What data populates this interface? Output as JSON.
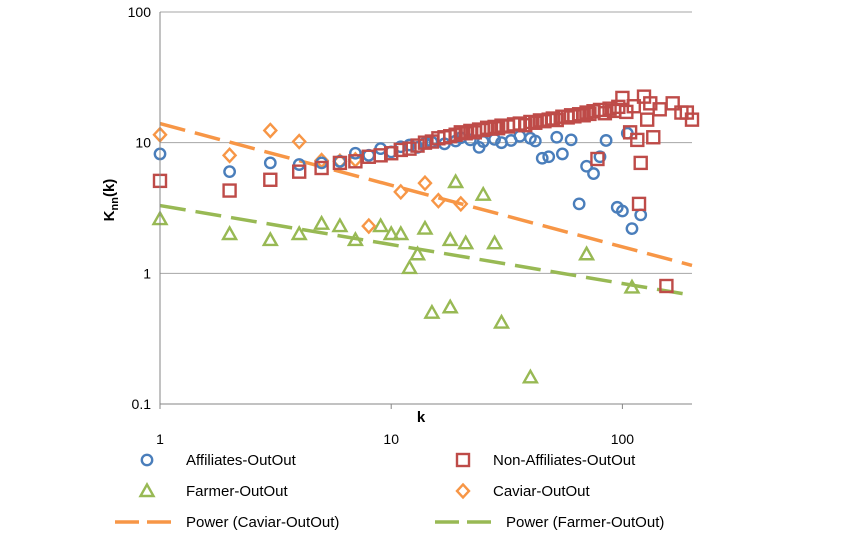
{
  "chart_data": {
    "type": "scatter",
    "xscale": "log",
    "yscale": "log",
    "xlim": [
      1,
      200
    ],
    "ylim": [
      0.1,
      100
    ],
    "x_ticks": [
      "1",
      "10",
      "100"
    ],
    "y_ticks": [
      "0.1",
      "1",
      "10",
      "100"
    ],
    "xlabel": "k",
    "ylabel_main": "K",
    "ylabel_sub": "nn",
    "ylabel_tail": "(k)",
    "grid": "horizontal",
    "legend_position": "bottom",
    "colors": {
      "affiliates": "#4a7ebb",
      "non_affiliates": "#be4b48",
      "farmer": "#98b954",
      "caviar": "#f79646",
      "axis": "#868686",
      "grid": "#a6a6a6"
    },
    "series": [
      {
        "name": "Affiliates-OutOut",
        "marker": "circle",
        "color": "#4a7ebb",
        "points": [
          [
            1,
            8.2
          ],
          [
            2,
            6.0
          ],
          [
            3,
            7.0
          ],
          [
            4,
            6.8
          ],
          [
            5,
            7.0
          ],
          [
            6,
            7.2
          ],
          [
            7,
            8.3
          ],
          [
            8,
            8.0
          ],
          [
            9,
            9.0
          ],
          [
            10,
            8.5
          ],
          [
            11,
            9.3
          ],
          [
            12,
            9.6
          ],
          [
            13,
            9.2
          ],
          [
            14,
            9.9
          ],
          [
            15,
            10.1
          ],
          [
            17,
            9.8
          ],
          [
            19,
            10.3
          ],
          [
            20,
            10.9
          ],
          [
            22,
            10.5
          ],
          [
            24,
            9.2
          ],
          [
            25,
            10.2
          ],
          [
            28,
            10.6
          ],
          [
            30,
            10.0
          ],
          [
            33,
            10.4
          ],
          [
            36,
            11.2
          ],
          [
            40,
            10.8
          ],
          [
            42,
            10.3
          ],
          [
            45,
            7.6
          ],
          [
            48,
            7.8
          ],
          [
            52,
            11.0
          ],
          [
            55,
            8.2
          ],
          [
            60,
            10.5
          ],
          [
            65,
            3.4
          ],
          [
            70,
            6.6
          ],
          [
            75,
            5.8
          ],
          [
            80,
            7.8
          ],
          [
            85,
            10.4
          ],
          [
            95,
            3.2
          ],
          [
            100,
            3.0
          ],
          [
            105,
            11.8
          ],
          [
            110,
            2.2
          ],
          [
            120,
            2.8
          ]
        ]
      },
      {
        "name": "Non-Affiliates-OutOut",
        "marker": "square",
        "color": "#be4b48",
        "points": [
          [
            1,
            5.1
          ],
          [
            2,
            4.3
          ],
          [
            3,
            5.2
          ],
          [
            4,
            6.0
          ],
          [
            5,
            6.4
          ],
          [
            6,
            7.0
          ],
          [
            7,
            7.2
          ],
          [
            8,
            7.8
          ],
          [
            9,
            8.0
          ],
          [
            10,
            8.3
          ],
          [
            11,
            8.8
          ],
          [
            12,
            9.0
          ],
          [
            13,
            9.5
          ],
          [
            14,
            10.0
          ],
          [
            15,
            10.2
          ],
          [
            16,
            10.8
          ],
          [
            17,
            11.0
          ],
          [
            18,
            11.2
          ],
          [
            19,
            11.5
          ],
          [
            20,
            12.0
          ],
          [
            21,
            11.8
          ],
          [
            22,
            12.3
          ],
          [
            23,
            12.0
          ],
          [
            24,
            12.6
          ],
          [
            25,
            12.5
          ],
          [
            26,
            13.0
          ],
          [
            27,
            12.8
          ],
          [
            28,
            13.2
          ],
          [
            29,
            12.9
          ],
          [
            30,
            13.5
          ],
          [
            32,
            13.3
          ],
          [
            34,
            13.8
          ],
          [
            36,
            14.0
          ],
          [
            38,
            13.6
          ],
          [
            40,
            14.4
          ],
          [
            42,
            14.2
          ],
          [
            44,
            14.8
          ],
          [
            46,
            14.6
          ],
          [
            48,
            15.0
          ],
          [
            50,
            15.3
          ],
          [
            52,
            14.9
          ],
          [
            55,
            15.8
          ],
          [
            58,
            15.6
          ],
          [
            60,
            16.2
          ],
          [
            62,
            15.9
          ],
          [
            65,
            16.5
          ],
          [
            68,
            16.2
          ],
          [
            70,
            17.0
          ],
          [
            72,
            16.6
          ],
          [
            75,
            17.4
          ],
          [
            78,
            7.5
          ],
          [
            80,
            17.8
          ],
          [
            84,
            16.8
          ],
          [
            88,
            18.2
          ],
          [
            92,
            17.5
          ],
          [
            96,
            18.8
          ],
          [
            100,
            22.0
          ],
          [
            104,
            17.2
          ],
          [
            108,
            12.0
          ],
          [
            112,
            19.0
          ],
          [
            116,
            10.5
          ],
          [
            118,
            3.4
          ],
          [
            120,
            7.0
          ],
          [
            124,
            22.5
          ],
          [
            128,
            15.0
          ],
          [
            132,
            20.0
          ],
          [
            136,
            11.0
          ],
          [
            145,
            18.0
          ],
          [
            155,
            0.8
          ],
          [
            165,
            20.0
          ],
          [
            180,
            17.0
          ],
          [
            190,
            17.0
          ],
          [
            200,
            15.0
          ]
        ]
      },
      {
        "name": "Farmer-OutOut",
        "marker": "triangle",
        "color": "#98b954",
        "points": [
          [
            1,
            2.6
          ],
          [
            2,
            2.0
          ],
          [
            3,
            1.8
          ],
          [
            4,
            2.0
          ],
          [
            5,
            2.4
          ],
          [
            6,
            2.3
          ],
          [
            7,
            1.8
          ],
          [
            9,
            2.3
          ],
          [
            10,
            2.0
          ],
          [
            11,
            2.0
          ],
          [
            12,
            1.1
          ],
          [
            13,
            1.4
          ],
          [
            14,
            2.2
          ],
          [
            15,
            0.5
          ],
          [
            18,
            0.55
          ],
          [
            18,
            1.8
          ],
          [
            19,
            5.0
          ],
          [
            21,
            1.7
          ],
          [
            25,
            4.0
          ],
          [
            28,
            1.7
          ],
          [
            30,
            0.42
          ],
          [
            40,
            0.16
          ],
          [
            70,
            1.4
          ],
          [
            110,
            0.78
          ]
        ]
      },
      {
        "name": "Caviar-OutOut",
        "marker": "diamond",
        "color": "#f79646",
        "points": [
          [
            1,
            11.5
          ],
          [
            2,
            8.0
          ],
          [
            3,
            12.4
          ],
          [
            4,
            10.2
          ],
          [
            5,
            7.3
          ],
          [
            6,
            7.2
          ],
          [
            7,
            7.4
          ],
          [
            8,
            2.3
          ],
          [
            11,
            4.2
          ],
          [
            14,
            4.9
          ],
          [
            16,
            3.6
          ],
          [
            20,
            3.4
          ]
        ]
      }
    ],
    "trendlines": [
      {
        "name": "Power (Caviar-OutOut)",
        "color": "#f79646",
        "from": [
          1,
          14.0
        ],
        "to": [
          200,
          1.15
        ]
      },
      {
        "name": "Power (Farmer-OutOut)",
        "color": "#98b954",
        "from": [
          1,
          3.3
        ],
        "to": [
          200,
          0.68
        ]
      }
    ],
    "legend": [
      {
        "label": "Affiliates-OutOut",
        "marker": "circle",
        "color": "#4a7ebb"
      },
      {
        "label": "Non-Affiliates-OutOut",
        "marker": "square",
        "color": "#be4b48"
      },
      {
        "label": "Farmer-OutOut",
        "marker": "triangle",
        "color": "#98b954"
      },
      {
        "label": "Caviar-OutOut",
        "marker": "diamond",
        "color": "#f79646"
      },
      {
        "label": "Power (Caviar-OutOut)",
        "marker": "dash",
        "color": "#f79646"
      },
      {
        "label": "Power (Farmer-OutOut)",
        "marker": "dash",
        "color": "#98b954"
      }
    ]
  }
}
